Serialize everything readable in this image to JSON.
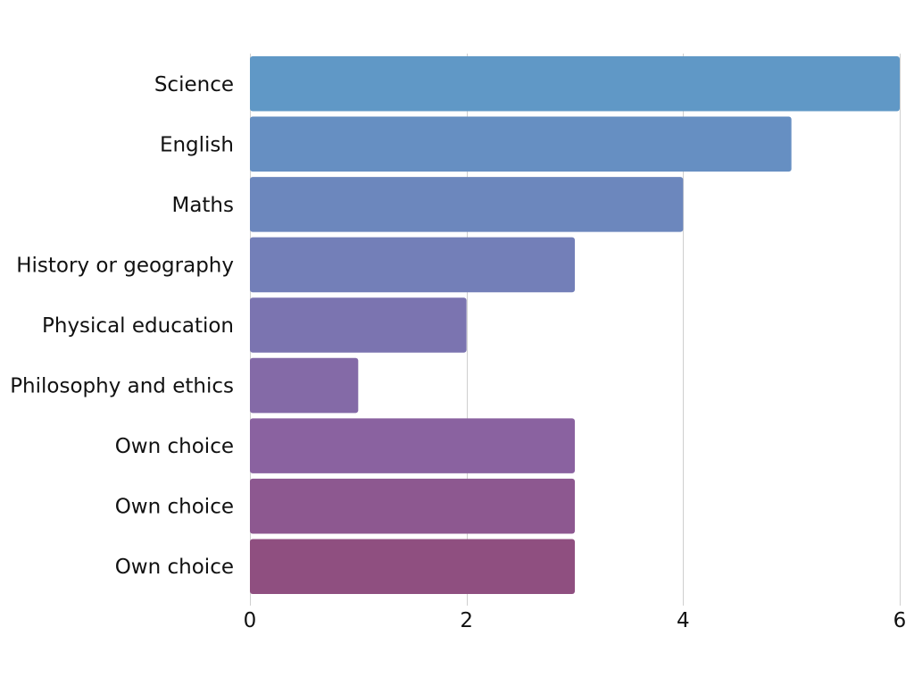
{
  "chart_data": {
    "type": "bar",
    "orientation": "horizontal",
    "title": "",
    "xlabel": "",
    "ylabel": "",
    "categories": [
      "Science",
      "English",
      "Maths",
      "History or geography",
      "Physical education",
      "Philosophy and ethics",
      "Own choice",
      "Own choice",
      "Own choice"
    ],
    "values": [
      6,
      5,
      4,
      3,
      2,
      1,
      3,
      3,
      3
    ],
    "xlim": [
      0,
      6
    ],
    "xticks": [
      0,
      2,
      4,
      6
    ],
    "grid": "vertical",
    "legend": "none",
    "colors": [
      "#6098c6",
      "#668fc2",
      "#6c87bd",
      "#737fb8",
      "#7b74b0",
      "#846aa7",
      "#8a62a0",
      "#8d5890",
      "#8f4f80"
    ]
  }
}
